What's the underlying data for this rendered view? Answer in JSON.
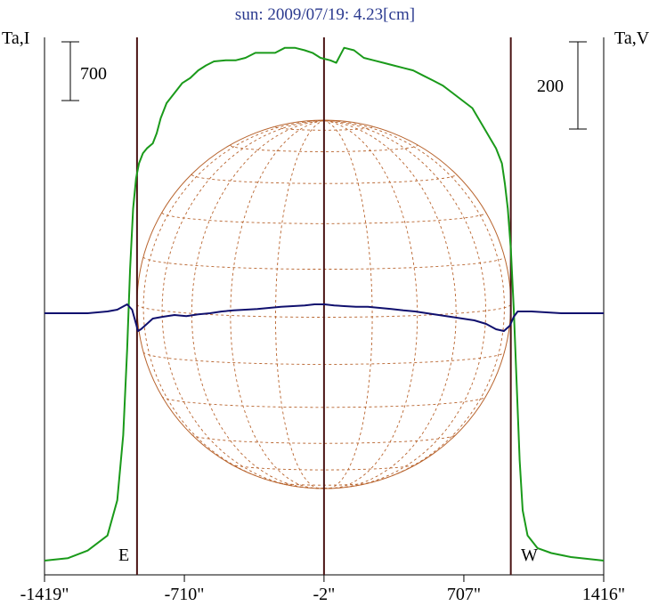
{
  "chart_data": {
    "type": "line",
    "title": "sun: 2009/07/19: 4.23[cm]",
    "left_axis_label": "Ta,I",
    "right_axis_label": "Ta,V",
    "left_scale_bar_label": "700",
    "right_scale_bar_label": "200",
    "east_label": "E",
    "west_label": "W",
    "x_tick_labels": [
      "-1419\"",
      "-710\"",
      "-2\"",
      "707\"",
      "1416\""
    ],
    "x_ticks": [
      -1419,
      -710,
      -2,
      707,
      1416
    ],
    "xlim": [
      -1419,
      1416
    ],
    "limb_lines_x": [
      -950,
      -2,
      945
    ],
    "grid": false,
    "series": [
      {
        "color": "#1a9a1a",
        "values": [
          [
            -1419,
            0.0
          ],
          [
            -1300,
            0.005
          ],
          [
            -1200,
            0.02
          ],
          [
            -1100,
            0.05
          ],
          [
            -1050,
            0.12
          ],
          [
            -1020,
            0.25
          ],
          [
            -1000,
            0.42
          ],
          [
            -985,
            0.58
          ],
          [
            -970,
            0.7
          ],
          [
            -955,
            0.76
          ],
          [
            -940,
            0.79
          ],
          [
            -920,
            0.81
          ],
          [
            -900,
            0.82
          ],
          [
            -870,
            0.83
          ],
          [
            -850,
            0.85
          ],
          [
            -830,
            0.88
          ],
          [
            -800,
            0.91
          ],
          [
            -760,
            0.93
          ],
          [
            -720,
            0.95
          ],
          [
            -680,
            0.96
          ],
          [
            -640,
            0.975
          ],
          [
            -600,
            0.985
          ],
          [
            -560,
            0.993
          ],
          [
            -500,
            0.995
          ],
          [
            -450,
            0.995
          ],
          [
            -400,
            1.0
          ],
          [
            -350,
            1.01
          ],
          [
            -300,
            1.01
          ],
          [
            -250,
            1.01
          ],
          [
            -200,
            1.02
          ],
          [
            -150,
            1.02
          ],
          [
            -100,
            1.015
          ],
          [
            -60,
            1.01
          ],
          [
            -20,
            1.0
          ],
          [
            30,
            0.995
          ],
          [
            60,
            0.99
          ],
          [
            100,
            1.02
          ],
          [
            150,
            1.015
          ],
          [
            200,
            1.0
          ],
          [
            250,
            0.995
          ],
          [
            300,
            0.99
          ],
          [
            350,
            0.985
          ],
          [
            400,
            0.98
          ],
          [
            450,
            0.975
          ],
          [
            500,
            0.965
          ],
          [
            550,
            0.955
          ],
          [
            600,
            0.945
          ],
          [
            650,
            0.93
          ],
          [
            700,
            0.915
          ],
          [
            750,
            0.9
          ],
          [
            780,
            0.88
          ],
          [
            810,
            0.86
          ],
          [
            840,
            0.84
          ],
          [
            870,
            0.82
          ],
          [
            900,
            0.79
          ],
          [
            915,
            0.75
          ],
          [
            930,
            0.7
          ],
          [
            945,
            0.62
          ],
          [
            960,
            0.5
          ],
          [
            975,
            0.35
          ],
          [
            990,
            0.2
          ],
          [
            1005,
            0.1
          ],
          [
            1030,
            0.05
          ],
          [
            1080,
            0.025
          ],
          [
            1150,
            0.015
          ],
          [
            1250,
            0.007
          ],
          [
            1416,
            0.0
          ]
        ]
      },
      {
        "color": "#10106e",
        "values": [
          [
            -1419,
            0.0
          ],
          [
            -1200,
            0.0
          ],
          [
            -1100,
            0.005
          ],
          [
            -1050,
            0.01
          ],
          [
            -1000,
            0.025
          ],
          [
            -975,
            0.01
          ],
          [
            -960,
            -0.02
          ],
          [
            -945,
            -0.05
          ],
          [
            -930,
            -0.045
          ],
          [
            -900,
            -0.03
          ],
          [
            -870,
            -0.015
          ],
          [
            -820,
            -0.01
          ],
          [
            -760,
            -0.005
          ],
          [
            -700,
            -0.008
          ],
          [
            -640,
            -0.003
          ],
          [
            -580,
            0.0
          ],
          [
            -520,
            0.005
          ],
          [
            -460,
            0.008
          ],
          [
            -400,
            0.01
          ],
          [
            -340,
            0.012
          ],
          [
            -280,
            0.015
          ],
          [
            -220,
            0.018
          ],
          [
            -160,
            0.02
          ],
          [
            -100,
            0.022
          ],
          [
            -50,
            0.025
          ],
          [
            0,
            0.025
          ],
          [
            50,
            0.022
          ],
          [
            100,
            0.02
          ],
          [
            160,
            0.018
          ],
          [
            220,
            0.018
          ],
          [
            280,
            0.015
          ],
          [
            340,
            0.012
          ],
          [
            400,
            0.008
          ],
          [
            460,
            0.005
          ],
          [
            520,
            0.0
          ],
          [
            580,
            -0.005
          ],
          [
            640,
            -0.01
          ],
          [
            700,
            -0.015
          ],
          [
            760,
            -0.02
          ],
          [
            820,
            -0.03
          ],
          [
            870,
            -0.045
          ],
          [
            910,
            -0.05
          ],
          [
            940,
            -0.035
          ],
          [
            960,
            -0.01
          ],
          [
            980,
            0.005
          ],
          [
            1050,
            0.005
          ],
          [
            1200,
            0.0
          ],
          [
            1416,
            0.0
          ]
        ]
      }
    ]
  }
}
